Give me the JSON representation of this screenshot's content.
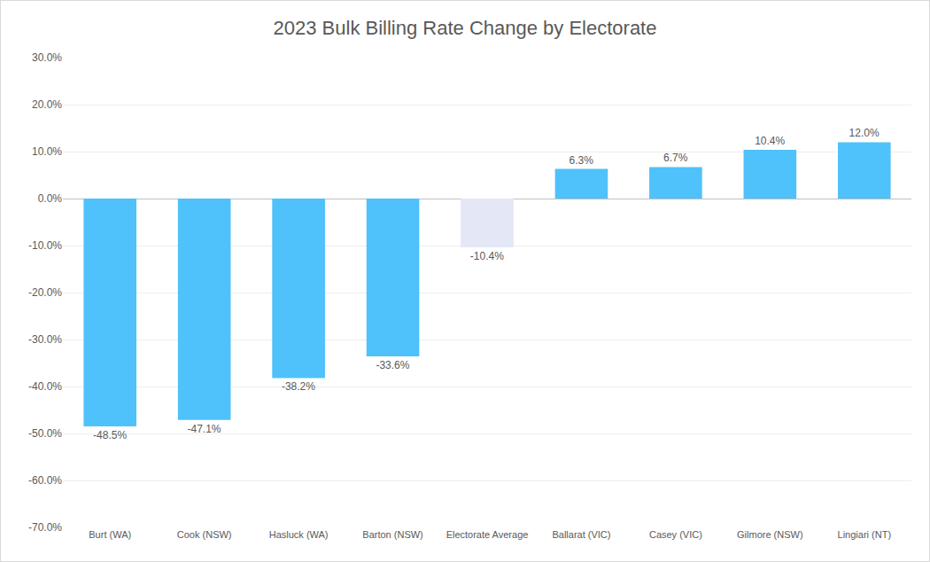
{
  "chart_data": {
    "type": "bar",
    "title": "2023 Bulk Billing Rate Change by Electorate",
    "categories": [
      "Burt (WA)",
      "Cook (NSW)",
      "Hasluck (WA)",
      "Barton (NSW)",
      "Electorate Average",
      "Ballarat (VIC)",
      "Casey (VIC)",
      "Gilmore (NSW)",
      "Lingiari (NT)"
    ],
    "values": [
      -48.5,
      -47.1,
      -38.2,
      -33.6,
      -10.4,
      6.3,
      6.7,
      10.4,
      12.0
    ],
    "value_labels": [
      "-48.5%",
      "-47.1%",
      "-38.2%",
      "-33.6%",
      "-10.4%",
      "6.3%",
      "6.7%",
      "10.4%",
      "12.0%"
    ],
    "colors": [
      "#4fc1fb",
      "#4fc1fb",
      "#4fc1fb",
      "#4fc1fb",
      "#e3e7f6",
      "#4fc1fb",
      "#4fc1fb",
      "#4fc1fb",
      "#4fc1fb"
    ],
    "ylim": [
      -70,
      30
    ],
    "yticks": [
      {
        "value": -70,
        "label": "-70.0%"
      },
      {
        "value": -60,
        "label": "-60.0%"
      },
      {
        "value": -50,
        "label": "-50.0%"
      },
      {
        "value": -40,
        "label": "-40.0%"
      },
      {
        "value": -30,
        "label": "-30.0%"
      },
      {
        "value": -20,
        "label": "-20.0%"
      },
      {
        "value": -10,
        "label": "-10.0%"
      },
      {
        "value": 0,
        "label": "0.0%"
      },
      {
        "value": 10,
        "label": "10.0%"
      },
      {
        "value": 20,
        "label": "20.0%"
      },
      {
        "value": 30,
        "label": "30.0%"
      }
    ],
    "grid": true,
    "data_labels": true
  }
}
